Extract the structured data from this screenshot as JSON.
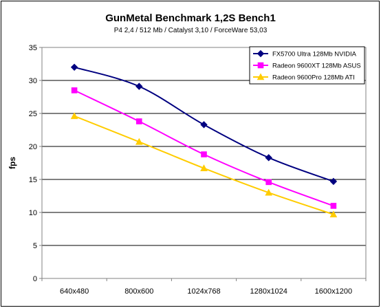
{
  "chart_data": {
    "type": "line",
    "title": "GunMetal Benchmark 1,2S Bench1",
    "subtitle": "P4 2,4 / 512 Mb / Catalyst 3,10 / ForceWare 53,03",
    "xlabel": "",
    "ylabel": "fps",
    "ylim": [
      0,
      35
    ],
    "yticks": [
      0,
      5,
      10,
      15,
      20,
      25,
      30,
      35
    ],
    "grid": true,
    "legend_position": "top-right",
    "categories": [
      "640x480",
      "800x600",
      "1024x768",
      "1280x1024",
      "1600x1200"
    ],
    "series": [
      {
        "name": "FX5700 Ultra 128Mb NVIDIA",
        "values": [
          32.0,
          29.1,
          23.3,
          18.3,
          14.7
        ],
        "color": "#000080",
        "marker": "diamond"
      },
      {
        "name": "Radeon 9600XT 128Mb ASUS",
        "values": [
          28.5,
          23.8,
          18.8,
          14.6,
          11.0
        ],
        "color": "#ff00ff",
        "marker": "square"
      },
      {
        "name": "Radeon 9600Pro 128Mb ATI",
        "values": [
          24.6,
          20.7,
          16.7,
          13.0,
          9.7
        ],
        "color": "#ffcc00",
        "marker": "triangle"
      }
    ]
  }
}
